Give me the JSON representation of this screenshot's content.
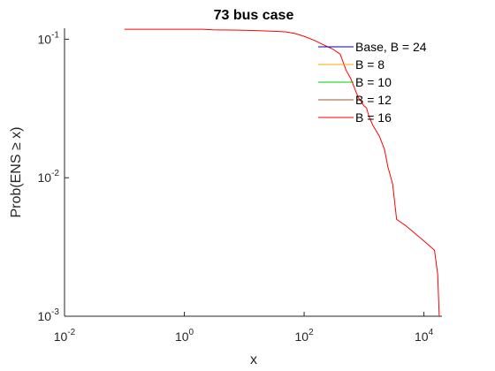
{
  "chart_data": {
    "type": "line",
    "title": "73 bus case",
    "xlabel": "x",
    "ylabel": "Prob(ENS ≥ x)",
    "xscale": "log",
    "yscale": "log",
    "xlim": [
      0.01,
      20000
    ],
    "ylim": [
      0.001,
      0.12
    ],
    "x_ticks": [
      {
        "value": 0.01,
        "base": "10",
        "exp": "-2"
      },
      {
        "value": 1,
        "base": "10",
        "exp": "0"
      },
      {
        "value": 100,
        "base": "10",
        "exp": "2"
      },
      {
        "value": 10000,
        "base": "10",
        "exp": "4"
      }
    ],
    "y_ticks": [
      {
        "value": 0.001,
        "base": "10",
        "exp": "-3"
      },
      {
        "value": 0.01,
        "base": "10",
        "exp": "-2"
      },
      {
        "value": 0.1,
        "base": "10",
        "exp": "-1"
      }
    ],
    "grid": false,
    "legend_position": "top-right",
    "series": [
      {
        "name": "Base, B = 24",
        "color": "#0000aa",
        "points": []
      },
      {
        "name": "B = 8",
        "color": "#ffa500",
        "points": []
      },
      {
        "name": "B = 10",
        "color": "#00cc00",
        "points": []
      },
      {
        "name": "B = 12",
        "color": "#a0522d",
        "points": []
      },
      {
        "name": "B = 16",
        "color": "#ff0000",
        "points": [
          [
            0.1,
            0.118
          ],
          [
            2,
            0.118
          ],
          [
            3,
            0.117
          ],
          [
            10,
            0.116
          ],
          [
            20,
            0.115
          ],
          [
            35,
            0.114
          ],
          [
            50,
            0.113
          ],
          [
            70,
            0.11
          ],
          [
            100,
            0.105
          ],
          [
            150,
            0.098
          ],
          [
            200,
            0.092
          ],
          [
            300,
            0.085
          ],
          [
            400,
            0.078
          ],
          [
            500,
            0.06
          ],
          [
            600,
            0.052
          ],
          [
            700,
            0.044
          ],
          [
            800,
            0.038
          ],
          [
            1000,
            0.033
          ],
          [
            1100,
            0.032
          ],
          [
            1200,
            0.028
          ],
          [
            1400,
            0.024
          ],
          [
            1800,
            0.02
          ],
          [
            2200,
            0.016
          ],
          [
            2500,
            0.012
          ],
          [
            3000,
            0.009
          ],
          [
            3500,
            0.005
          ],
          [
            5000,
            0.0045
          ],
          [
            10000,
            0.0035
          ],
          [
            15000,
            0.003
          ],
          [
            17000,
            0.002
          ],
          [
            18000,
            0.001
          ]
        ]
      }
    ]
  }
}
